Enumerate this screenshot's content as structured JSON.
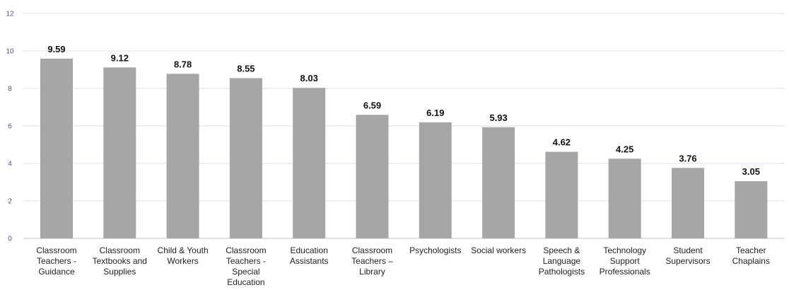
{
  "chart_data": {
    "type": "bar",
    "categories": [
      [
        "Classroom",
        "Teachers -",
        "Guidance"
      ],
      [
        "Classroom",
        "Textbooks and",
        "Supplies"
      ],
      [
        "Child & Youth",
        "Workers"
      ],
      [
        "Classroom",
        "Teachers -",
        "Special",
        "Education"
      ],
      [
        "Education",
        "Assistants"
      ],
      [
        "Classroom",
        "Teachers –",
        "Library"
      ],
      [
        "Psychologists"
      ],
      [
        "Social workers"
      ],
      [
        "Speech &",
        "Language",
        "Pathologists"
      ],
      [
        "Technology",
        "Support",
        "Professionals"
      ],
      [
        "Student",
        "Supervisors"
      ],
      [
        "Teacher",
        "Chaplains"
      ]
    ],
    "values": [
      9.59,
      9.12,
      8.78,
      8.55,
      8.03,
      6.59,
      6.19,
      5.93,
      4.62,
      4.25,
      3.76,
      3.05
    ],
    "data_labels": [
      "9.59",
      "9.12",
      "8.78",
      "8.55",
      "8.03",
      "6.59",
      "6.19",
      "5.93",
      "4.62",
      "4.25",
      "3.76",
      "3.05"
    ],
    "y_ticks": [
      "0",
      "2",
      "4",
      "6",
      "8",
      "10",
      "12"
    ],
    "ylim": [
      0,
      12
    ],
    "grid": true,
    "legend": "none",
    "colors": {
      "bar": "#a6a6a6",
      "grid": "#d6e0ec",
      "axis": "#bfbfbf",
      "tick_text": "#3b5b86",
      "label_text": "#111111"
    }
  }
}
